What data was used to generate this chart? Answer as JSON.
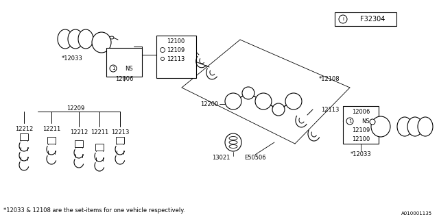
{
  "bg_color": "#ffffff",
  "line_color": "#000000",
  "part_id": "F32304",
  "doc_id": "A010001135",
  "footnote": "*12033 & 12108 are the set-items for one vehicle respectively."
}
